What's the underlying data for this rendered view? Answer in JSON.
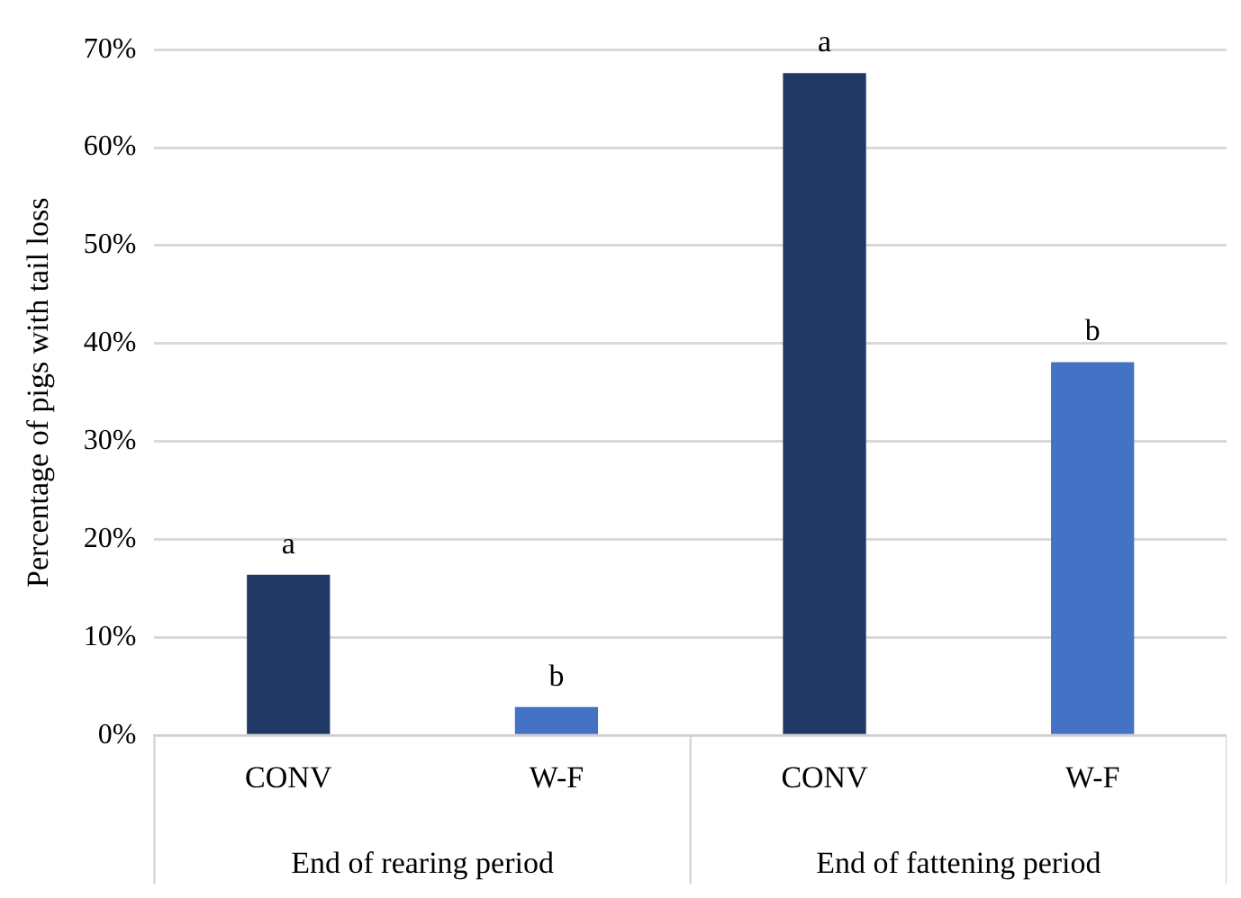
{
  "chart_data": {
    "type": "bar",
    "ylabel": "Percentage of pigs with tail loss",
    "categories": [
      "CONV",
      "W-F",
      "CONV",
      "W-F"
    ],
    "values": [
      16.4,
      2.9,
      67.6,
      38.1
    ],
    "colors": [
      "#203864",
      "#4472c4",
      "#203864",
      "#4472c4"
    ],
    "value_labels": [
      "a",
      "b",
      "a",
      "b"
    ],
    "annotations": [
      "End of rearing period",
      "End of fattening period"
    ],
    "ylim": [
      0,
      70
    ],
    "yticks": [
      {
        "value": 0,
        "label": "0%"
      },
      {
        "value": 10,
        "label": "10%"
      },
      {
        "value": 20,
        "label": "20%"
      },
      {
        "value": 30,
        "label": "30%"
      },
      {
        "value": 40,
        "label": "40%"
      },
      {
        "value": 50,
        "label": "50%"
      },
      {
        "value": 60,
        "label": "60%"
      },
      {
        "value": 70,
        "label": "70%"
      }
    ],
    "grid": "y",
    "legend": false
  }
}
